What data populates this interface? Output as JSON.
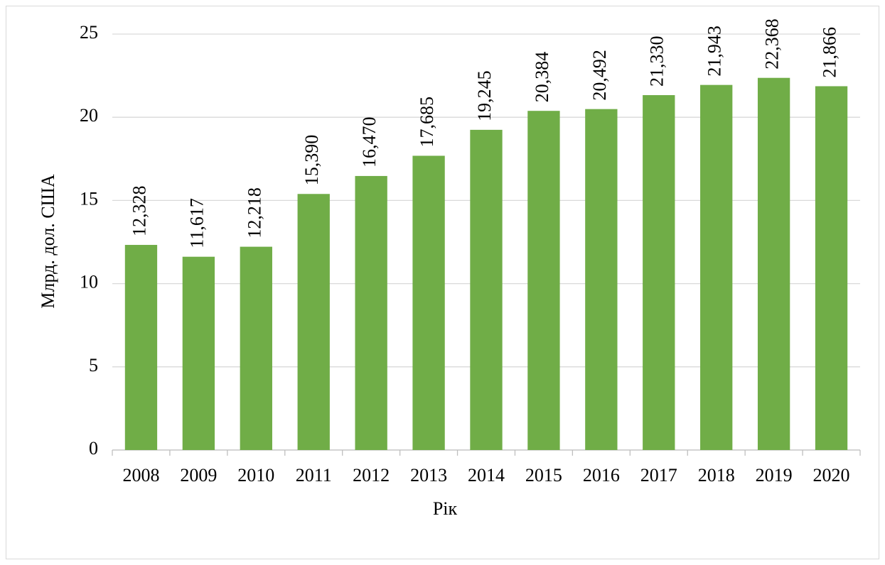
{
  "chart_data": {
    "type": "bar",
    "y_label": "Млрд. дол. США",
    "x_label": "Рік",
    "categories": [
      "2008",
      "2009",
      "2010",
      "2011",
      "2012",
      "2013",
      "2014",
      "2015",
      "2016",
      "2017",
      "2018",
      "2019",
      "2020"
    ],
    "values": [
      12.328,
      11.617,
      12.218,
      15.39,
      16.47,
      17.685,
      19.245,
      20.384,
      20.492,
      21.33,
      21.943,
      22.368,
      21.866
    ],
    "value_labels": [
      "12,328",
      "11,617",
      "12,218",
      "15,390",
      "16,470",
      "17,685",
      "19,245",
      "20,384",
      "20,492",
      "21,330",
      "21,943",
      "22,368",
      "21,866"
    ],
    "color": "#70ad47",
    "ylim": [
      0,
      25
    ],
    "yticks": [
      0,
      5,
      10,
      15,
      20,
      25
    ],
    "grid": true
  }
}
